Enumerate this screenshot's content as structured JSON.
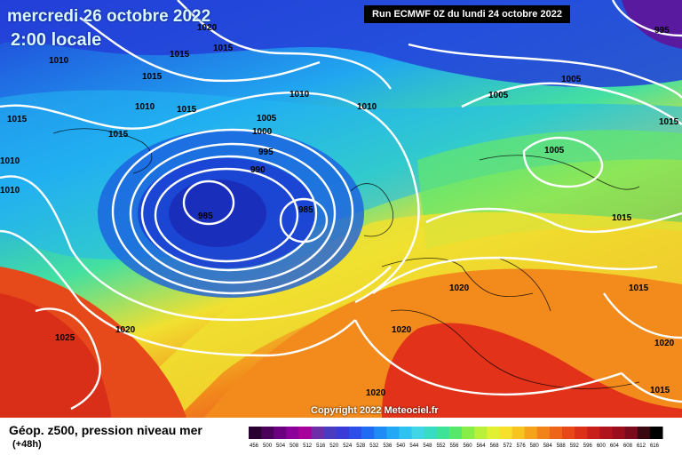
{
  "header": {
    "date_title": "mercredi 26 octobre 2022",
    "time_title": "2:00 locale",
    "run_info": "Run ECMWF 0Z du lundi 24 octobre 2022"
  },
  "footer": {
    "copyright": "Copyright 2022 Meteociel.fr",
    "legend_title": "Géop. z500, pression niveau mer",
    "legend_subtitle": "(+48h)"
  },
  "isobar_labels": [
    {
      "text": "1020"
    },
    {
      "text": "1015"
    },
    {
      "text": "1010"
    },
    {
      "text": "1015"
    },
    {
      "text": "1015"
    },
    {
      "text": "1010"
    },
    {
      "text": "1015"
    },
    {
      "text": "1015"
    },
    {
      "text": "1015"
    },
    {
      "text": "1010"
    },
    {
      "text": "1005"
    },
    {
      "text": "1000"
    },
    {
      "text": "995"
    },
    {
      "text": "990"
    },
    {
      "text": "985"
    },
    {
      "text": "985"
    },
    {
      "text": "1010"
    },
    {
      "text": "1010"
    },
    {
      "text": "1010"
    },
    {
      "text": "1005"
    },
    {
      "text": "1005"
    },
    {
      "text": "1015"
    },
    {
      "text": "1005"
    },
    {
      "text": "995"
    },
    {
      "text": "1015"
    },
    {
      "text": "1015"
    },
    {
      "text": "1020"
    },
    {
      "text": "1020"
    },
    {
      "text": "1025"
    },
    {
      "text": "1020"
    },
    {
      "text": "1020"
    },
    {
      "text": "1020"
    },
    {
      "text": "1015"
    }
  ],
  "color_scale": {
    "colors": [
      "#2a0033",
      "#4b0059",
      "#6a007f",
      "#8c0099",
      "#a8009b",
      "#6d2ea8",
      "#4a3cc0",
      "#3a3ad8",
      "#2b4fe8",
      "#1f6cf2",
      "#1f8bf5",
      "#22a8f5",
      "#2ec2f0",
      "#40d6e6",
      "#38dcc2",
      "#3fe398",
      "#56e86a",
      "#86ee46",
      "#b8f03a",
      "#e2f033",
      "#f6e02a",
      "#f8c420",
      "#f6a31c",
      "#f2821a",
      "#ee6418",
      "#e84818",
      "#dd3018",
      "#c91f1a",
      "#b0141c",
      "#9a0e1e",
      "#7a0a1c",
      "#3a0810",
      "#000000"
    ],
    "ticks": [
      "456",
      "500",
      "504",
      "508",
      "512",
      "516",
      "520",
      "524",
      "528",
      "532",
      "536",
      "540",
      "544",
      "548",
      "552",
      "556",
      "560",
      "564",
      "568",
      "572",
      "576",
      "580",
      "584",
      "588",
      "592",
      "596",
      "600",
      "604",
      "608",
      "612",
      "616"
    ]
  }
}
